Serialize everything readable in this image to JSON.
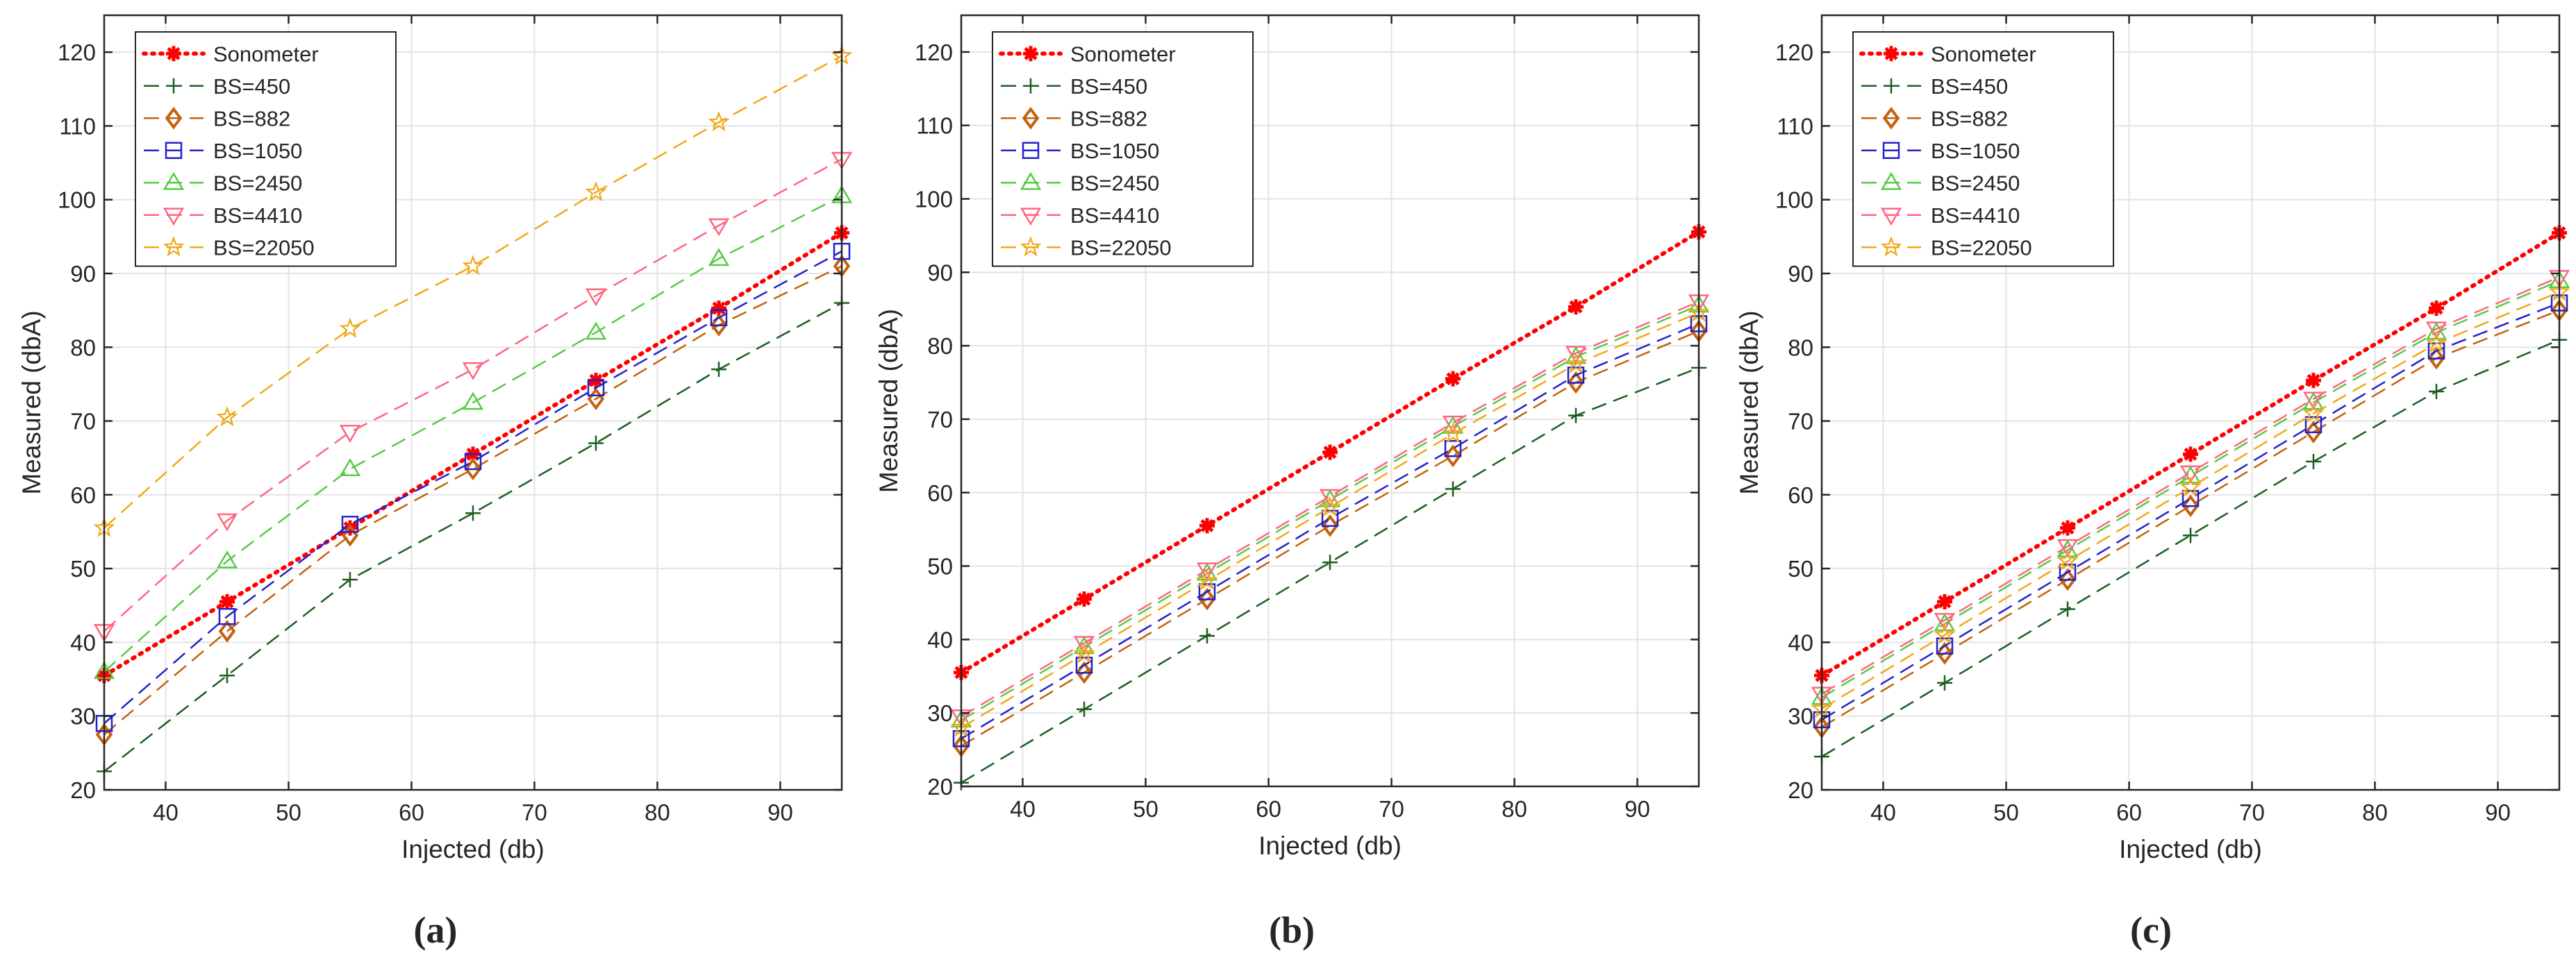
{
  "figure": {
    "panel_labels": [
      "(a)",
      "(b)",
      "(c)"
    ]
  },
  "chart_data": [
    {
      "type": "line",
      "panel_label": "(a)",
      "xlabel": "Injected (db)",
      "ylabel": "Measured (dbA)",
      "xlim": [
        35,
        95
      ],
      "ylim": [
        20,
        125
      ],
      "xticks": [
        40,
        50,
        60,
        70,
        80,
        90
      ],
      "yticks": [
        20,
        30,
        40,
        50,
        60,
        70,
        80,
        90,
        100,
        110,
        120
      ],
      "grid": true,
      "legend_position": "top-left",
      "x": [
        35,
        45,
        55,
        65,
        75,
        85,
        95
      ],
      "series": [
        {
          "name": "Sonometer",
          "color": "#ff0000",
          "marker": "asterisk",
          "dash": "dotted",
          "values": [
            35.5,
            45.5,
            55.5,
            65.5,
            75.5,
            85.3,
            95.5
          ]
        },
        {
          "name": "BS=450",
          "color": "#1b5e20",
          "marker": "plus",
          "dash": "dashed",
          "values": [
            22.5,
            35.5,
            48.5,
            57.5,
            67.0,
            77.0,
            86.0
          ]
        },
        {
          "name": "BS=882",
          "color": "#c4620e",
          "marker": "diamond",
          "dash": "dashed",
          "values": [
            27.5,
            41.5,
            54.5,
            63.5,
            73.0,
            83.0,
            91.0
          ]
        },
        {
          "name": "BS=1050",
          "color": "#2222cc",
          "marker": "square",
          "dash": "dashed",
          "values": [
            29.0,
            43.5,
            56.0,
            64.5,
            74.5,
            84.0,
            93.0
          ]
        },
        {
          "name": "BS=2450",
          "color": "#55cc44",
          "marker": "triangle-up",
          "dash": "dashed",
          "values": [
            36.0,
            51.0,
            63.5,
            72.5,
            82.0,
            92.0,
            100.5
          ]
        },
        {
          "name": "BS=4410",
          "color": "#ff6680",
          "marker": "triangle-down",
          "dash": "dashed",
          "values": [
            41.5,
            56.5,
            68.5,
            77.0,
            87.0,
            96.5,
            105.5
          ]
        },
        {
          "name": "BS=22050",
          "color": "#f0a818",
          "marker": "star",
          "dash": "dashed",
          "values": [
            55.5,
            70.5,
            82.5,
            91.0,
            101.0,
            110.5,
            119.5
          ]
        }
      ]
    },
    {
      "type": "line",
      "panel_label": "(b)",
      "xlabel": "Injected (db)",
      "ylabel": "Measured (dbA)",
      "xlim": [
        35,
        95
      ],
      "ylim": [
        20,
        125
      ],
      "xticks": [
        40,
        50,
        60,
        70,
        80,
        90
      ],
      "yticks": [
        20,
        30,
        40,
        50,
        60,
        70,
        80,
        90,
        100,
        110,
        120
      ],
      "grid": true,
      "legend_position": "top-left",
      "x": [
        35,
        45,
        55,
        65,
        75,
        85,
        95
      ],
      "series": [
        {
          "name": "Sonometer",
          "color": "#ff0000",
          "marker": "asterisk",
          "dash": "dotted",
          "values": [
            35.5,
            45.5,
            55.5,
            65.5,
            75.5,
            85.3,
            95.5
          ]
        },
        {
          "name": "BS=450",
          "color": "#1b5e20",
          "marker": "plus",
          "dash": "dashed",
          "values": [
            20.5,
            30.5,
            40.5,
            50.5,
            60.5,
            70.5,
            77.0
          ]
        },
        {
          "name": "BS=882",
          "color": "#c4620e",
          "marker": "diamond",
          "dash": "dashed",
          "values": [
            25.5,
            35.5,
            45.5,
            55.5,
            65.0,
            75.0,
            82.0
          ]
        },
        {
          "name": "BS=1050",
          "color": "#2222cc",
          "marker": "square",
          "dash": "dashed",
          "values": [
            26.5,
            36.5,
            46.5,
            56.5,
            66.0,
            76.0,
            83.0
          ]
        },
        {
          "name": "BS=2450",
          "color": "#55cc44",
          "marker": "triangle-up",
          "dash": "dashed",
          "values": [
            29.0,
            39.0,
            49.0,
            59.0,
            69.0,
            78.5,
            85.5
          ]
        },
        {
          "name": "BS=4410",
          "color": "#ff6680",
          "marker": "triangle-down",
          "dash": "dashed",
          "values": [
            29.5,
            39.5,
            49.5,
            59.5,
            69.5,
            79.0,
            86.0
          ]
        },
        {
          "name": "BS=22050",
          "color": "#f0a818",
          "marker": "star",
          "dash": "dashed",
          "values": [
            28.0,
            38.0,
            48.0,
            58.0,
            68.0,
            77.5,
            84.5
          ]
        }
      ]
    },
    {
      "type": "line",
      "panel_label": "(c)",
      "xlabel": "Injected (db)",
      "ylabel": "Measured (dbA)",
      "xlim": [
        35,
        95
      ],
      "ylim": [
        20,
        125
      ],
      "xticks": [
        40,
        50,
        60,
        70,
        80,
        90
      ],
      "yticks": [
        20,
        30,
        40,
        50,
        60,
        70,
        80,
        90,
        100,
        110,
        120
      ],
      "grid": true,
      "legend_position": "top-left",
      "x": [
        35,
        45,
        55,
        65,
        75,
        85,
        95
      ],
      "series": [
        {
          "name": "Sonometer",
          "color": "#ff0000",
          "marker": "asterisk",
          "dash": "dotted",
          "values": [
            35.5,
            45.5,
            55.5,
            65.5,
            75.5,
            85.3,
            95.5
          ]
        },
        {
          "name": "BS=450",
          "color": "#1b5e20",
          "marker": "plus",
          "dash": "dashed",
          "values": [
            24.5,
            34.5,
            44.5,
            54.5,
            64.5,
            74.0,
            81.0
          ]
        },
        {
          "name": "BS=882",
          "color": "#c4620e",
          "marker": "diamond",
          "dash": "dashed",
          "values": [
            28.5,
            38.5,
            48.5,
            58.5,
            68.5,
            78.5,
            85.0
          ]
        },
        {
          "name": "BS=1050",
          "color": "#2222cc",
          "marker": "square",
          "dash": "dashed",
          "values": [
            29.5,
            39.5,
            49.5,
            59.5,
            69.5,
            79.5,
            86.0
          ]
        },
        {
          "name": "BS=2450",
          "color": "#55cc44",
          "marker": "triangle-up",
          "dash": "dashed",
          "values": [
            32.5,
            42.5,
            52.5,
            62.5,
            72.5,
            82.0,
            89.0
          ]
        },
        {
          "name": "BS=4410",
          "color": "#ff6680",
          "marker": "triangle-down",
          "dash": "dashed",
          "values": [
            33.0,
            43.0,
            53.0,
            63.0,
            73.0,
            82.5,
            89.5
          ]
        },
        {
          "name": "BS=22050",
          "color": "#f0a818",
          "marker": "star",
          "dash": "dashed",
          "values": [
            31.0,
            41.0,
            51.0,
            61.0,
            71.0,
            80.5,
            87.5
          ]
        }
      ]
    }
  ]
}
